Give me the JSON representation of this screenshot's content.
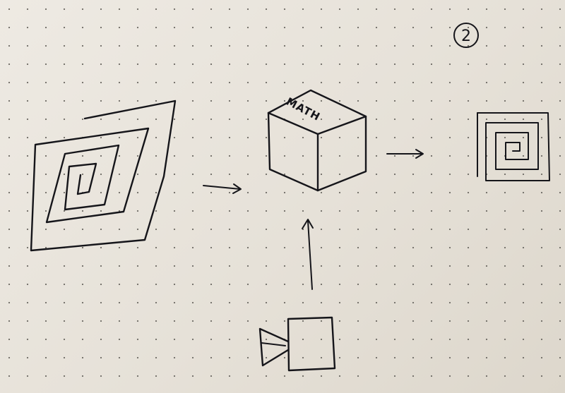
{
  "sketch": {
    "page_number": "2",
    "cube_label": "MATH",
    "ink_color": "#15151a",
    "paper_color": "#e9e5dd"
  }
}
